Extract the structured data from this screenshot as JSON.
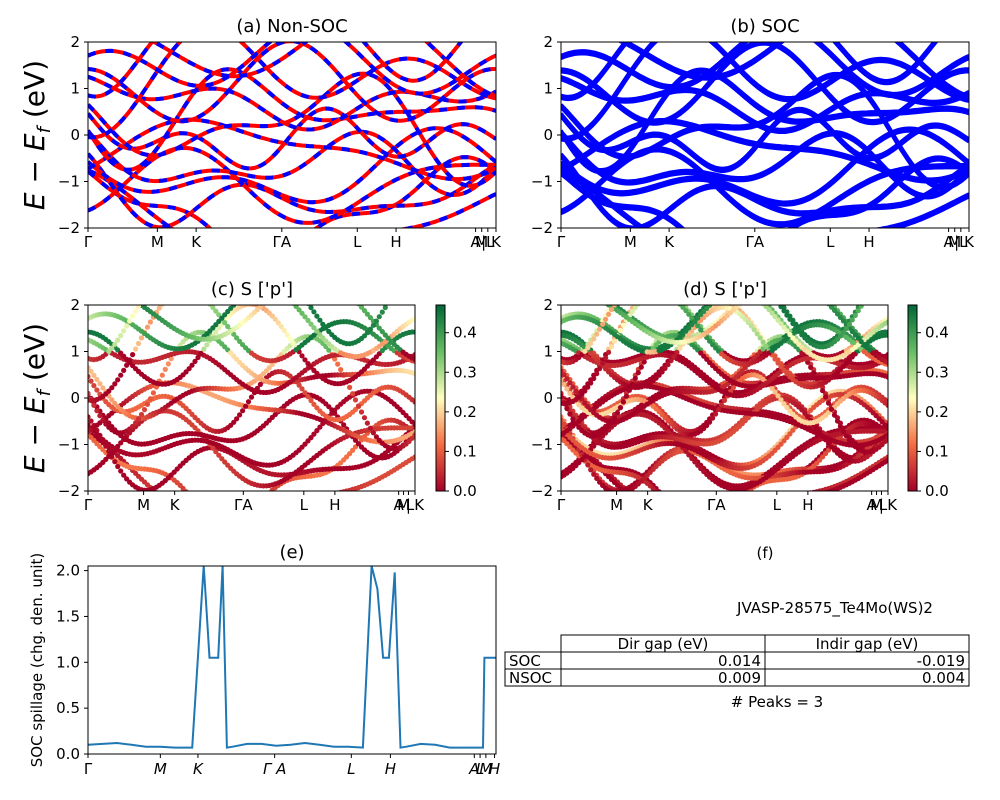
{
  "band_yticks": [
    "2",
    "1",
    "0",
    "−1",
    "−2"
  ],
  "kpath_labels": [
    "Γ",
    "M",
    "K",
    "ΓA",
    "L",
    "H",
    "A",
    "M",
    "|L",
    "K"
  ],
  "kpath_labels_tight": [
    "Γ",
    "M",
    "K",
    "ΓA",
    "L",
    "H",
    "A",
    "M",
    "|",
    "LK"
  ],
  "spill_xticks": [
    "Γ",
    "M",
    "K",
    "Γ A",
    "L",
    "H",
    "A",
    "L",
    "M",
    "H"
  ],
  "ylabel_energy": "E − E",
  "ylabel_energy_sub": "f",
  "ylabel_energy_unit": " (eV)",
  "colors": {
    "nonsoc_a": "#0000ff",
    "nonsoc_b": "#ff0000",
    "soc": "#0000ff",
    "spillage": "#1f77b4"
  },
  "panels": {
    "a": {
      "title": "(a) Non-SOC"
    },
    "b": {
      "title": "(b) SOC"
    },
    "c": {
      "title": "(c)  S ['p']",
      "colorbar_ticks": [
        "0.4",
        "0.3",
        "0.2",
        "0.1",
        "0.0"
      ]
    },
    "d": {
      "title": "(d) S ['p']",
      "colorbar_ticks": [
        "0.4",
        "0.3",
        "0.2",
        "0.1",
        "0.0"
      ]
    },
    "e": {
      "title": "(e)"
    },
    "f": {
      "title": "(f)"
    }
  },
  "chart_data": [
    {
      "panel": "a",
      "type": "line",
      "title": "(a) Non-SOC",
      "ylabel": "E − E_f (eV)",
      "ylim": [
        -2,
        2
      ],
      "xtick_labels": [
        "Γ",
        "M",
        "K",
        "ΓA",
        "L",
        "H",
        "A",
        "M",
        "|L",
        "K"
      ]
    },
    {
      "panel": "b",
      "type": "line",
      "title": "(b) SOC",
      "ylim": [
        -2,
        2
      ],
      "xtick_labels": [
        "Γ",
        "M",
        "K",
        "ΓA",
        "L",
        "H",
        "A",
        "M",
        "|L",
        "K"
      ]
    },
    {
      "panel": "c",
      "type": "scatter",
      "title": "(c)  S ['p']",
      "ylabel": "E − E_f (eV)",
      "ylim": [
        -2,
        2
      ],
      "colorbar_range": [
        0.0,
        0.47
      ],
      "colormap": "RdYlGn"
    },
    {
      "panel": "d",
      "type": "scatter",
      "title": "(d) S ['p']",
      "ylim": [
        -2,
        2
      ],
      "colorbar_range": [
        0.0,
        0.47
      ],
      "colormap": "RdYlGn"
    },
    {
      "panel": "e",
      "type": "line",
      "title": "(e)",
      "ylabel": "SOC spillage (chg. den. unit)",
      "ylim": [
        0,
        2.05
      ],
      "yticks": [
        "0.0",
        "0.5",
        "1.0",
        "1.5",
        "2.0"
      ],
      "x": [
        0,
        0.05,
        0.1,
        0.15,
        0.2,
        0.25,
        0.3,
        0.36,
        0.4,
        0.405,
        0.42,
        0.435,
        0.45,
        0.465,
        0.48,
        0.5,
        0.55,
        0.6,
        0.65,
        0.7,
        0.75,
        0.8,
        0.85,
        0.9,
        0.95,
        0.98,
        1.0,
        1.02,
        1.04,
        1.06,
        1.08,
        1.1,
        1.15,
        1.2,
        1.25,
        1.3,
        1.35,
        1.365,
        1.37,
        1.39,
        1.41
      ],
      "y": [
        0.1,
        0.11,
        0.12,
        0.1,
        0.08,
        0.08,
        0.07,
        0.07,
        2.05,
        1.8,
        1.05,
        1.05,
        1.05,
        2.05,
        0.07,
        0.08,
        0.11,
        0.11,
        0.09,
        0.1,
        0.12,
        0.1,
        0.08,
        0.08,
        0.07,
        2.05,
        1.8,
        1.05,
        1.05,
        1.98,
        0.07,
        0.08,
        0.11,
        0.1,
        0.07,
        0.07,
        0.07,
        0.07,
        1.05,
        1.05,
        1.05
      ]
    },
    {
      "panel": "f",
      "type": "table",
      "title": "(f)",
      "material": "JVASP-28575_Te4Mo(WS)2",
      "columns": [
        "",
        "Dir gap (eV)",
        "Indir gap (eV)"
      ],
      "rows": [
        [
          "SOC",
          "0.014",
          "-0.019"
        ],
        [
          "NSOC",
          "0.009",
          "0.004"
        ]
      ],
      "peaks_text": "# Peaks = 3"
    }
  ]
}
